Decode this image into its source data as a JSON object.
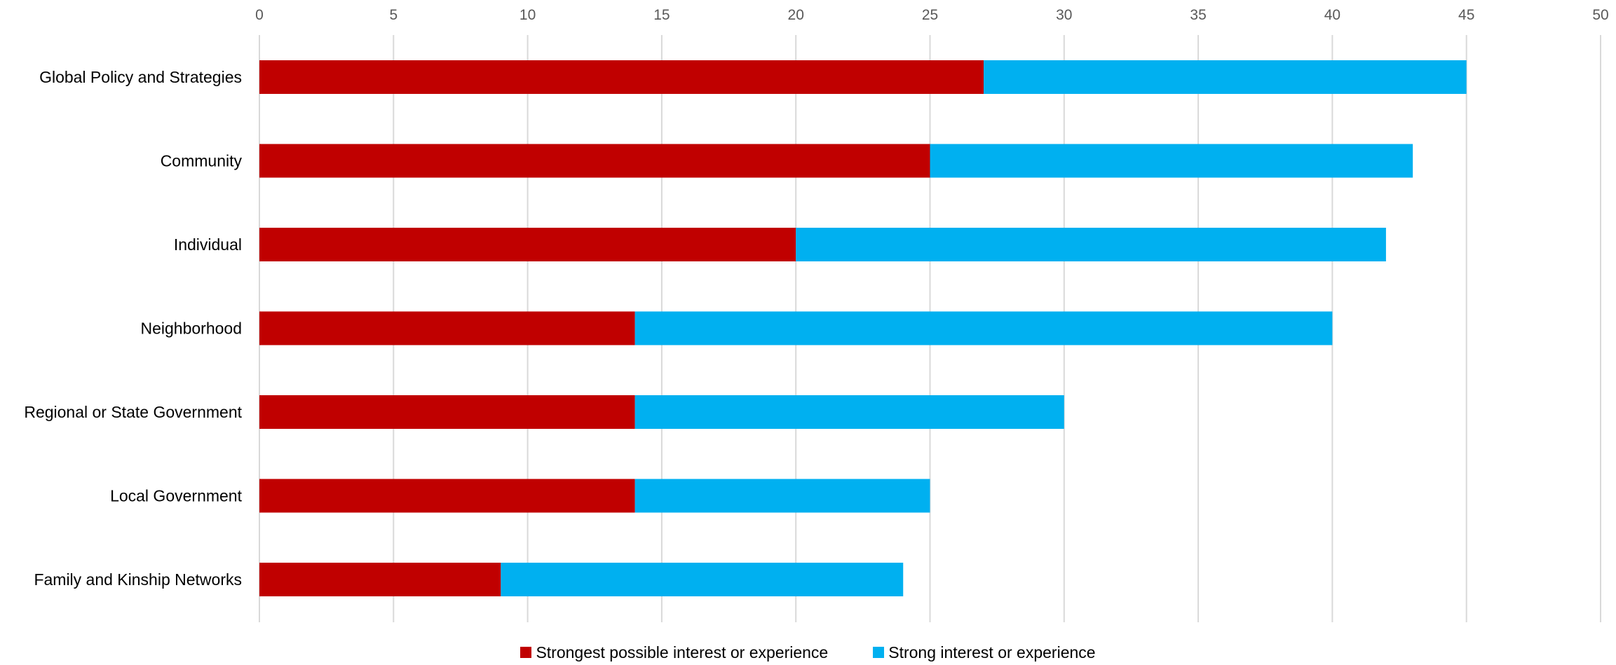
{
  "chart_data": {
    "type": "bar",
    "orientation": "horizontal",
    "stacked": true,
    "categories": [
      "Global Policy and Strategies",
      "Community",
      "Individual",
      "Neighborhood",
      "Regional or State Government",
      "Local Government",
      "Family and Kinship Networks"
    ],
    "series": [
      {
        "name": "Strongest possible interest or experience",
        "color": "#C00000",
        "values": [
          27,
          25,
          20,
          14,
          14,
          14,
          9
        ]
      },
      {
        "name": "Strong interest or experience",
        "color": "#00B0F0",
        "values": [
          18,
          18,
          22,
          26,
          16,
          11,
          15
        ]
      }
    ],
    "xlim": [
      0,
      50
    ],
    "xticks": [
      0,
      5,
      10,
      15,
      20,
      25,
      30,
      35,
      40,
      45,
      50
    ],
    "x_axis_position": "top",
    "grid": true,
    "legend_position": "bottom"
  }
}
